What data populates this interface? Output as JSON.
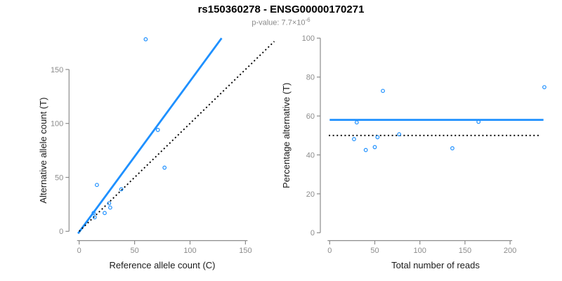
{
  "header": {
    "title": "rs150360278 - ENSG00000170271",
    "subtitle_prefix": "p-value: ",
    "subtitle_mantissa": "7.7",
    "subtitle_times": "×10",
    "subtitle_exponent": "-6"
  },
  "colors": {
    "accent_blue": "#1E90FF",
    "line_black": "#000000",
    "axis_gray": "#8c8c8c",
    "tick_label_gray": "#8c8c8c",
    "axis_title_black": "#1a1a1a",
    "subtitle_gray": "#8a8a8a",
    "title_black": "#000000"
  },
  "chart_data": [
    {
      "type": "scatter",
      "name": "ref-vs-alt-count",
      "xlabel": "Reference allele count (C)",
      "ylabel": "Alternative allele count (T)",
      "x_ticks": [
        0,
        50,
        100,
        150
      ],
      "y_ticks": [
        0,
        50,
        100,
        150
      ],
      "xlim": [
        0,
        150
      ],
      "ylim": [
        0,
        150
      ],
      "grid": false,
      "points": [
        [
          60,
          178
        ],
        [
          71,
          94
        ],
        [
          77,
          59
        ],
        [
          16,
          43
        ],
        [
          38,
          39
        ],
        [
          27,
          26
        ],
        [
          28,
          22
        ],
        [
          23,
          17
        ],
        [
          13,
          17
        ],
        [
          14,
          13
        ]
      ],
      "lines": [
        {
          "name": "fitted-ratio-line",
          "style": "solid",
          "color": "accent_blue",
          "x1": -1,
          "y1": -2,
          "x2": 128.5,
          "y2": 179
        },
        {
          "name": "identity-line",
          "style": "dotted",
          "color": "line_black",
          "x1": 0,
          "y1": 0,
          "x2": 176,
          "y2": 176
        }
      ]
    },
    {
      "type": "scatter",
      "name": "reads-vs-percentage",
      "xlabel": "Total number of reads",
      "ylabel": "Percentage alternative (T)",
      "x_ticks": [
        0,
        50,
        100,
        150,
        200
      ],
      "y_ticks": [
        0,
        20,
        40,
        60,
        80,
        100
      ],
      "xlim": [
        0,
        200
      ],
      "ylim": [
        0,
        100
      ],
      "grid": false,
      "points": [
        [
          238,
          74.8
        ],
        [
          165,
          57
        ],
        [
          136,
          43.4
        ],
        [
          59,
          72.9
        ],
        [
          77,
          50.6
        ],
        [
          53,
          49.1
        ],
        [
          50,
          44
        ],
        [
          40,
          42.5
        ],
        [
          30,
          56.7
        ],
        [
          27,
          48.1
        ]
      ],
      "lines": [
        {
          "name": "mean-percentage-line",
          "style": "solid",
          "color": "accent_blue",
          "x1": 0,
          "y1": 58,
          "x2": 237,
          "y2": 58
        },
        {
          "name": "fifty-percent-line",
          "style": "dotted",
          "color": "line_black",
          "x1": -1,
          "y1": 50,
          "x2": 233,
          "y2": 50
        }
      ]
    }
  ]
}
